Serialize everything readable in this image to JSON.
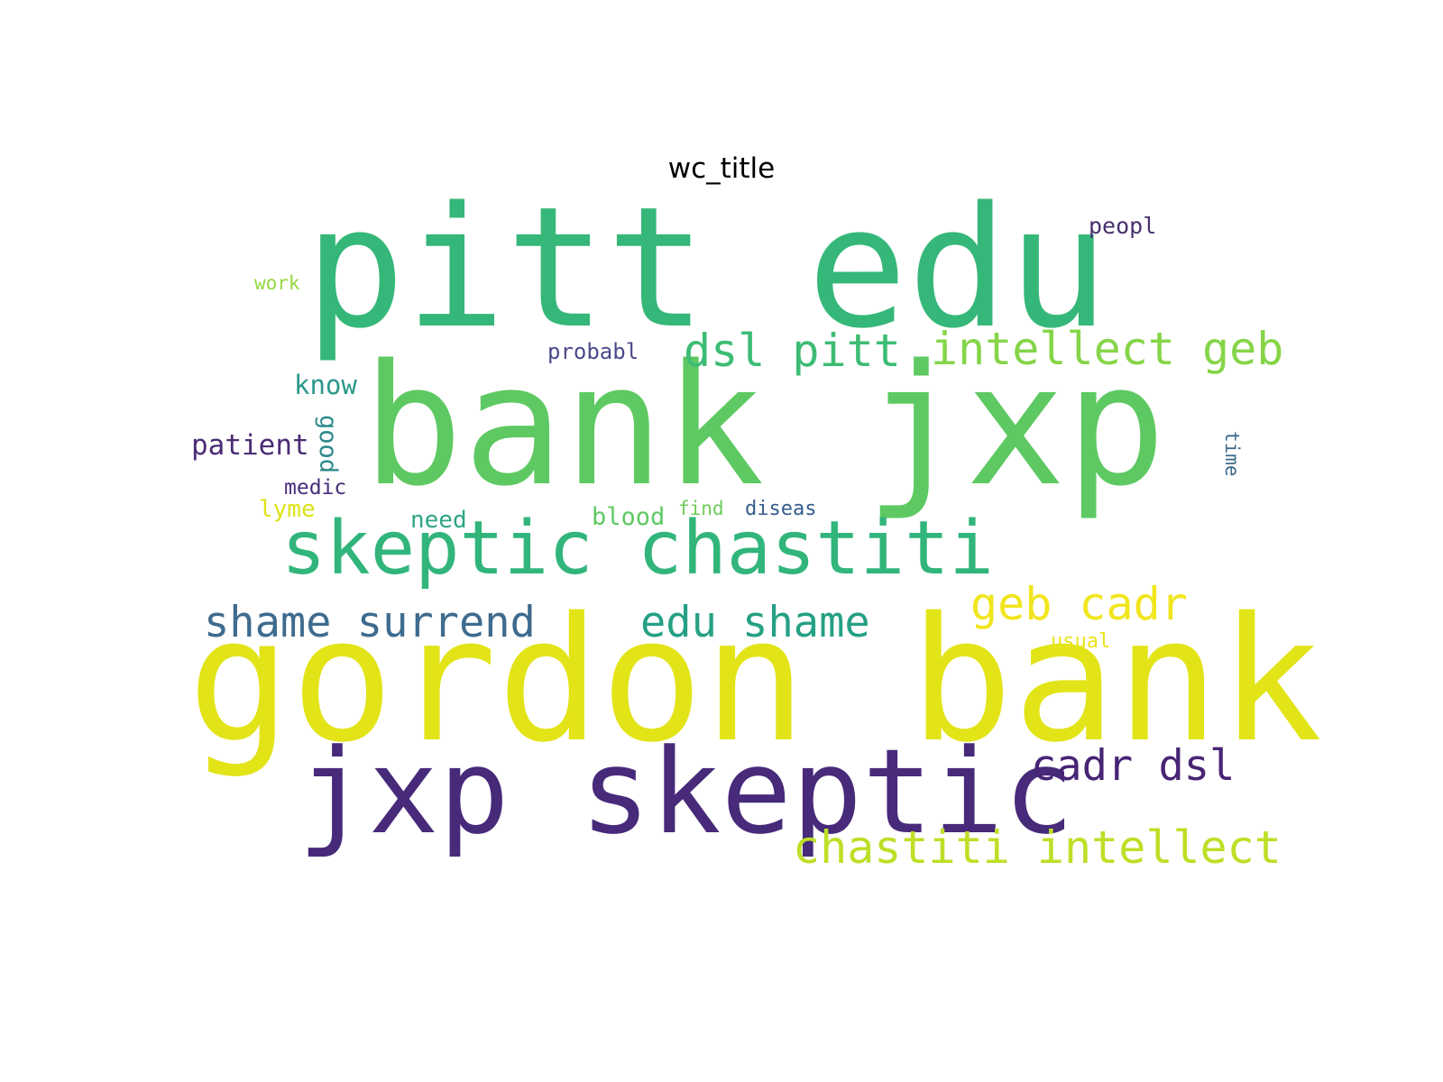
{
  "title": "wc_title",
  "words": [
    {
      "text": "pitt edu",
      "color": "#35b779"
    },
    {
      "text": "bank jxp",
      "color": "#5ec962"
    },
    {
      "text": "gordon bank",
      "color": "#e2e418"
    },
    {
      "text": "jxp skeptic",
      "color": "#472a7a"
    },
    {
      "text": "skeptic chastiti",
      "color": "#31b57b"
    },
    {
      "text": "dsl pitt",
      "color": "#3dbc74"
    },
    {
      "text": "intellect geb",
      "color": "#86d549"
    },
    {
      "text": "shame surrend",
      "color": "#3e6b8e"
    },
    {
      "text": "edu shame",
      "color": "#25a085"
    },
    {
      "text": "geb cadr",
      "color": "#f1e51d"
    },
    {
      "text": "cadr dsl",
      "color": "#482475"
    },
    {
      "text": "chastiti intellect",
      "color": "#bddf26"
    },
    {
      "text": "peopl",
      "color": "#482f6f"
    },
    {
      "text": "work",
      "color": "#95d840"
    },
    {
      "text": "probabl",
      "color": "#4b4a8b"
    },
    {
      "text": "know",
      "color": "#2a988a"
    },
    {
      "text": "good",
      "color": "#2f8a8b"
    },
    {
      "text": "patient",
      "color": "#4b2c74"
    },
    {
      "text": "time",
      "color": "#3f6a8a"
    },
    {
      "text": "medic",
      "color": "#472c7a"
    },
    {
      "text": "lyme",
      "color": "#dce319"
    },
    {
      "text": "need",
      "color": "#2ea585"
    },
    {
      "text": "blood",
      "color": "#5ec962"
    },
    {
      "text": "find",
      "color": "#6ecc5a"
    },
    {
      "text": "diseas",
      "color": "#365c8d"
    },
    {
      "text": "usual",
      "color": "#e8e419"
    }
  ]
}
